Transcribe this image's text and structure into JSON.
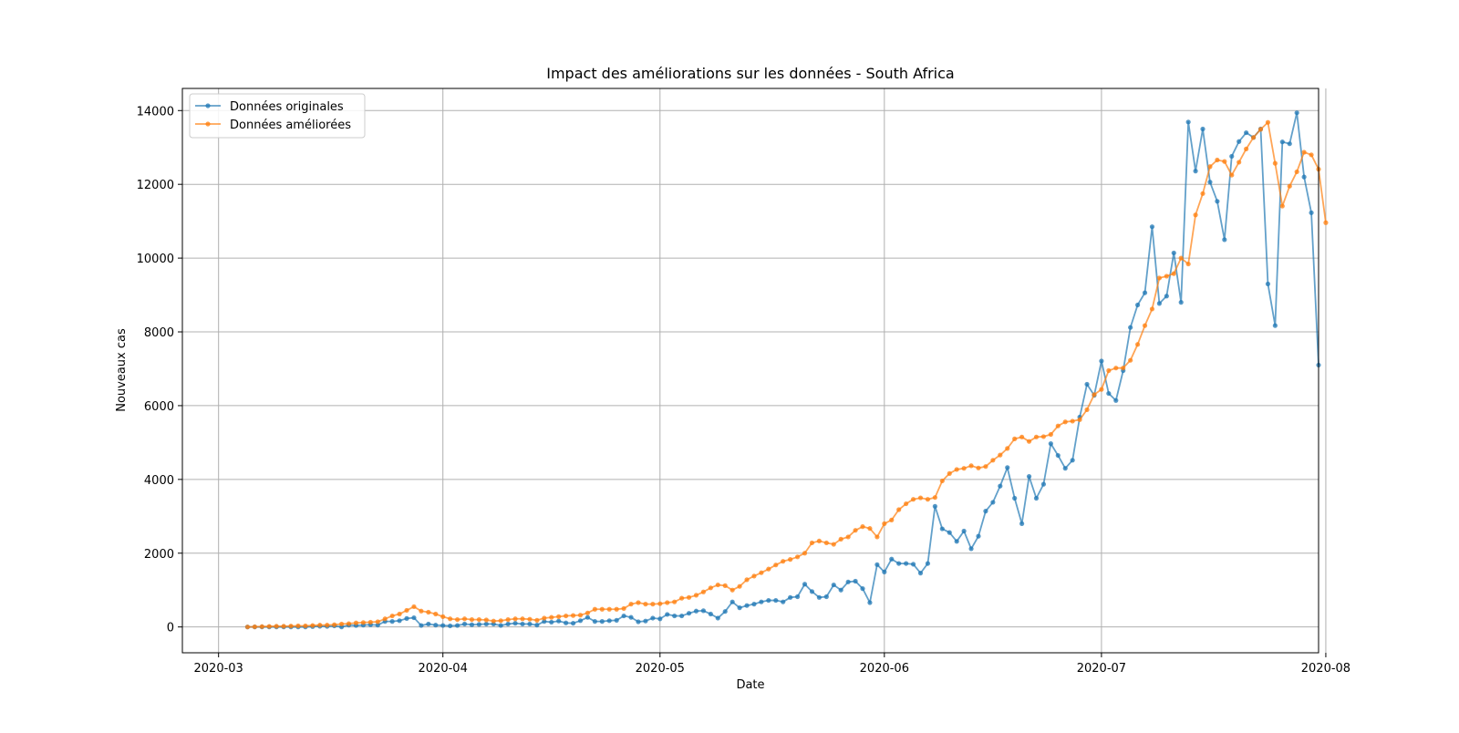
{
  "chart_data": {
    "type": "line",
    "title": "Impact des améliorations sur les données - South Africa",
    "xlabel": "Date",
    "ylabel": "Nouveaux cas",
    "grid": true,
    "legend_position": "upper-left",
    "x_range": [
      "2020-02-25",
      "2020-07-31"
    ],
    "ylim": [
      -700,
      14600
    ],
    "x_ticks": [
      "2020-03",
      "2020-04",
      "2020-05",
      "2020-06",
      "2020-07",
      "2020-08"
    ],
    "x_tick_dates": [
      "2020-03-01",
      "2020-04-01",
      "2020-05-01",
      "2020-06-01",
      "2020-07-01",
      "2020-08-01"
    ],
    "y_ticks": [
      0,
      2000,
      4000,
      6000,
      8000,
      10000,
      12000,
      14000
    ],
    "x_start": "2020-03-05",
    "x_end": "2020-07-27",
    "series": [
      {
        "name": "Données originales",
        "color": "#1f77b4",
        "values": [
          0,
          0,
          0,
          0,
          0,
          0,
          0,
          0,
          0,
          10,
          20,
          15,
          30,
          0,
          50,
          40,
          50,
          60,
          50,
          150,
          150,
          170,
          230,
          250,
          40,
          80,
          50,
          40,
          30,
          40,
          80,
          60,
          70,
          80,
          80,
          40,
          80,
          100,
          80,
          80,
          50,
          150,
          130,
          160,
          110,
          100,
          170,
          260,
          150,
          150,
          170,
          180,
          300,
          260,
          140,
          160,
          240,
          220,
          340,
          300,
          300,
          370,
          430,
          440,
          350,
          240,
          420,
          680,
          520,
          580,
          620,
          680,
          720,
          720,
          680,
          800,
          820,
          1160,
          960,
          800,
          820,
          1140,
          1000,
          1220,
          1240,
          1040,
          660,
          1690,
          1490,
          1840,
          1720,
          1720,
          1700,
          1460,
          1720,
          3270,
          2660,
          2560,
          2320,
          2600,
          2120,
          2460,
          3140,
          3380,
          3820,
          4320,
          3490,
          2800,
          4080,
          3490,
          3870,
          4970,
          4650,
          4300,
          4520,
          5690,
          6580,
          6280,
          7210,
          6330,
          6140,
          6950,
          8120,
          8730,
          9060,
          10850,
          8770,
          8970,
          10140,
          8800,
          13690,
          12360,
          13500,
          12060,
          11540,
          10500,
          12760,
          13160,
          13400,
          13270,
          13500,
          9300,
          8170,
          13150,
          13100,
          13940,
          12200,
          11230,
          7100
        ]
      },
      {
        "name": "Données améliorées",
        "color": "#ff7f0e",
        "values": [
          0,
          5,
          10,
          15,
          20,
          20,
          25,
          30,
          30,
          40,
          50,
          50,
          60,
          80,
          90,
          110,
          120,
          130,
          140,
          220,
          300,
          350,
          450,
          550,
          430,
          400,
          350,
          280,
          220,
          200,
          220,
          200,
          200,
          190,
          160,
          170,
          200,
          220,
          220,
          210,
          180,
          240,
          260,
          280,
          300,
          310,
          320,
          380,
          480,
          480,
          480,
          480,
          500,
          620,
          660,
          620,
          620,
          630,
          660,
          680,
          780,
          800,
          860,
          950,
          1060,
          1140,
          1120,
          1000,
          1100,
          1280,
          1380,
          1470,
          1570,
          1680,
          1780,
          1830,
          1900,
          2000,
          2280,
          2330,
          2280,
          2240,
          2380,
          2440,
          2620,
          2720,
          2670,
          2440,
          2800,
          2900,
          3180,
          3340,
          3460,
          3500,
          3460,
          3510,
          3960,
          4160,
          4270,
          4300,
          4370,
          4310,
          4350,
          4520,
          4660,
          4840,
          5100,
          5150,
          5030,
          5150,
          5160,
          5220,
          5450,
          5560,
          5580,
          5620,
          5890,
          6300,
          6440,
          6950,
          7020,
          7020,
          7230,
          7660,
          8170,
          8620,
          9460,
          9510,
          9580,
          10000,
          9840,
          11170,
          11750,
          12480,
          12660,
          12620,
          12250,
          12600,
          12960,
          13270,
          13490,
          13680,
          12570,
          11410,
          11950,
          12340,
          12870,
          12800,
          12410,
          10960
        ]
      }
    ]
  }
}
